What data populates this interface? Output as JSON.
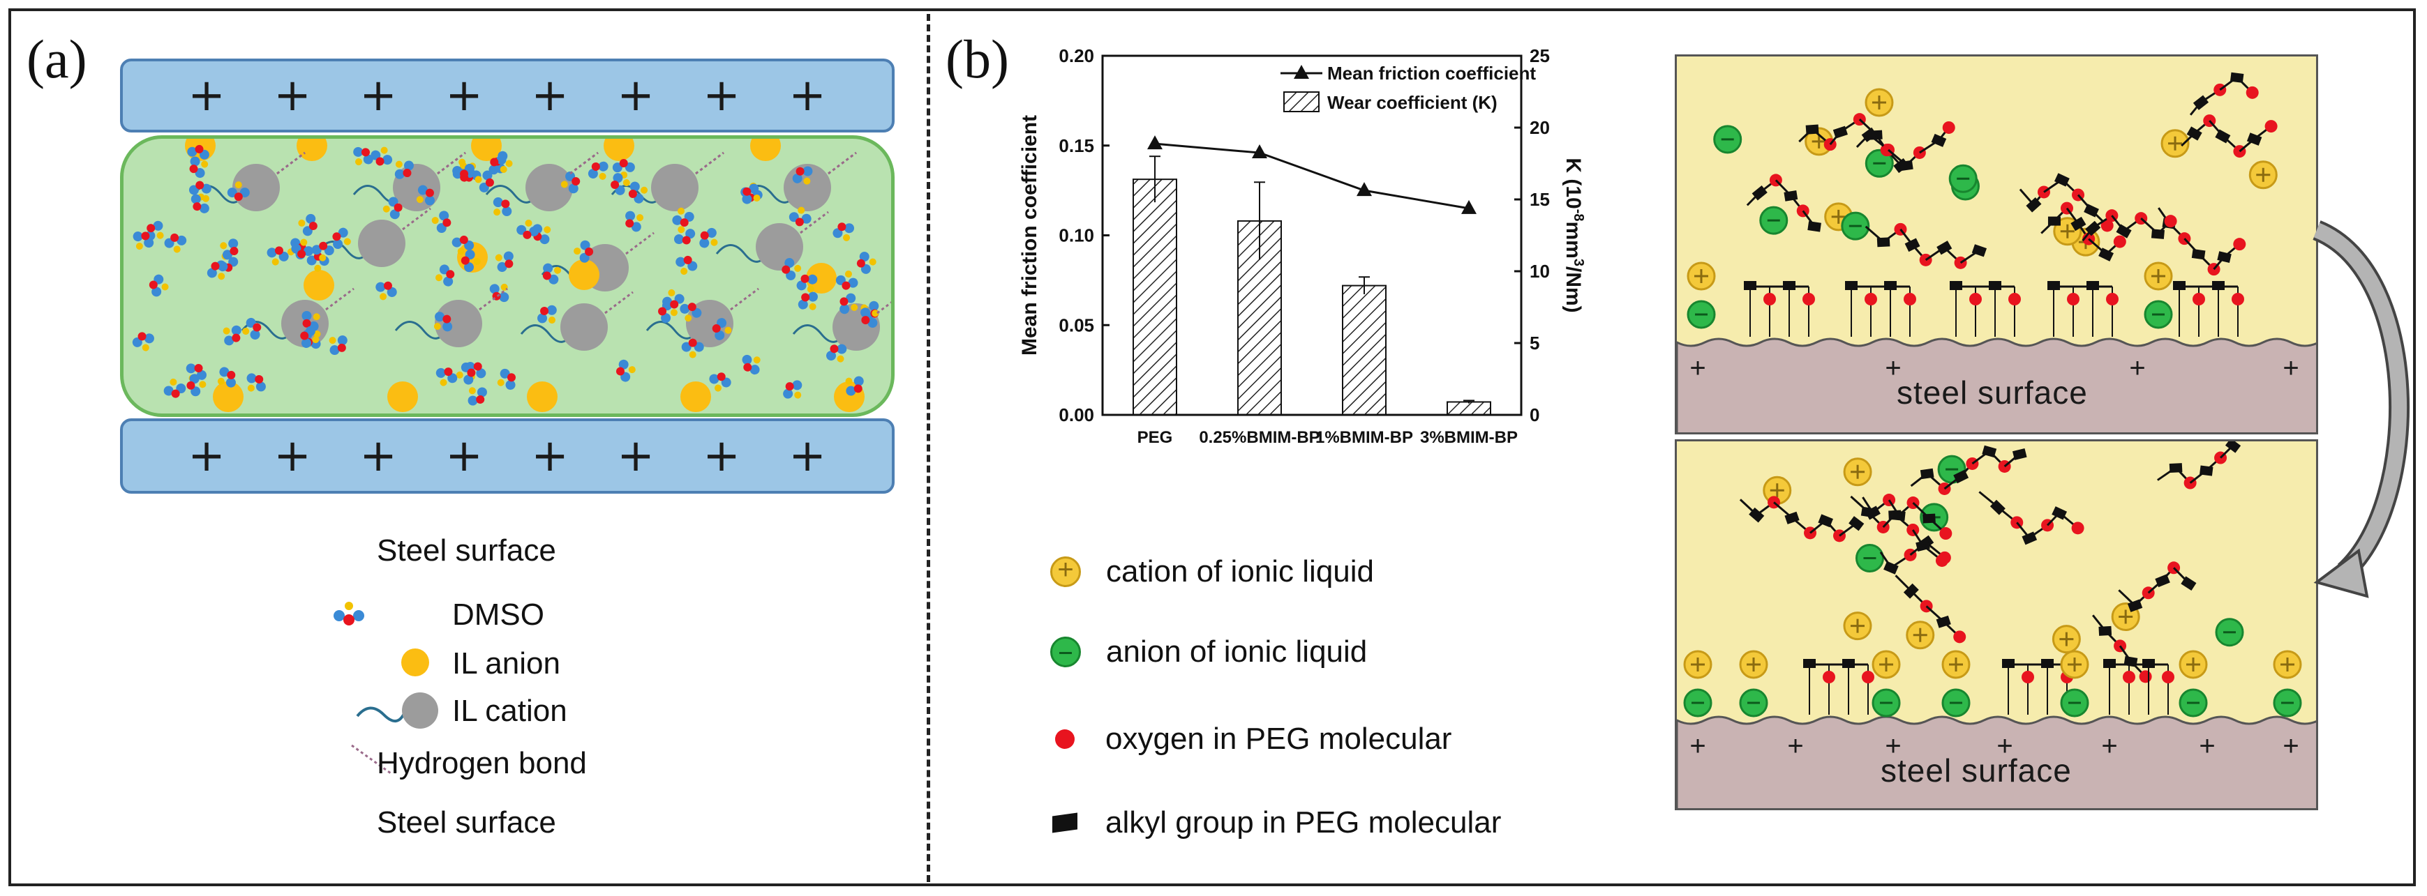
{
  "panel_a": {
    "label": "(a)",
    "legend": {
      "steel_top": "Steel surface",
      "dmso": "DMSO",
      "il_anion": "IL anion",
      "il_cation": "IL cation",
      "hbond": "Hydrogen bond",
      "steel_bottom": "Steel surface"
    },
    "plate_symbol": "+"
  },
  "panel_b": {
    "label": "(b)",
    "legend": [
      {
        "icon": "cation-icon",
        "text": "cation of ionic liquid"
      },
      {
        "icon": "anion-icon",
        "text": "anion  of  ionic liquid"
      },
      {
        "icon": "oxygen-icon",
        "text": "oxygen in PEG molecular"
      },
      {
        "icon": "alkyl-icon",
        "text": "alkyl group in PEG molecular"
      }
    ],
    "scene_top_label": "steel surface",
    "scene_bottom_label": "steel  surface",
    "colors": {
      "cation": "#f4c93a",
      "anion": "#2eb84a",
      "oxygen": "#e8141f",
      "alkyl": "#111111",
      "steel": "#c9b3b3",
      "fluid": "#f6ecad"
    }
  },
  "chart_data": {
    "type": "bar",
    "categories": [
      "PEG",
      "0.25%BMIM-BP",
      "1%BMIM-BP",
      "3%BMIM-BP"
    ],
    "series": [
      {
        "name": "Mean friction coefficient",
        "kind": "line",
        "axis": "left",
        "values": [
          0.151,
          0.146,
          0.125,
          0.115
        ]
      },
      {
        "name": "Wear coefficient (K)",
        "kind": "bar",
        "axis": "right",
        "values": [
          16.4,
          13.5,
          9.0,
          0.9
        ],
        "errors": [
          1.6,
          2.7,
          0.6,
          0.1
        ]
      }
    ],
    "ylabel": "Mean friction coefficient",
    "y2label": "K (10",
    "y2label_sup1": "-8",
    "y2label_mid": "mm",
    "y2label_sup2": "3",
    "y2label_end": "/Nm)",
    "ylim": [
      0.0,
      0.2
    ],
    "y2lim": [
      0,
      25
    ],
    "yticks": [
      "0.00",
      "0.05",
      "0.10",
      "0.15",
      "0.20"
    ],
    "y2ticks": [
      "0",
      "5",
      "10",
      "15",
      "20",
      "25"
    ],
    "legend_position": "top-right"
  }
}
